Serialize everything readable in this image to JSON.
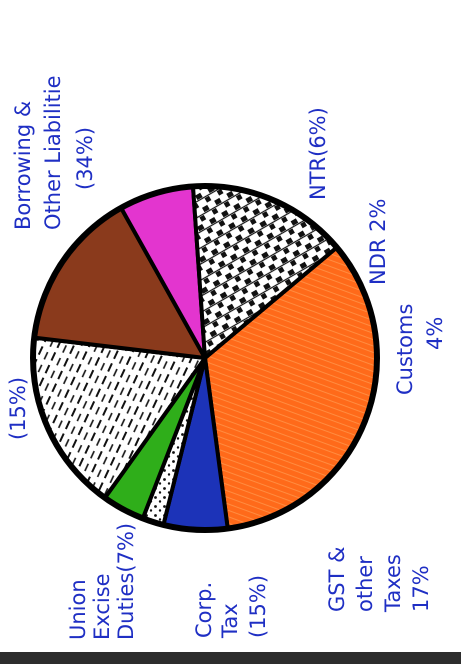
{
  "chart_data": {
    "type": "pie",
    "title": "",
    "slices": [
      {
        "label_lines": [
          "Borrowing &",
          "Other Liabilitie",
          "(34%)"
        ],
        "value": 34,
        "color": "#ff6a1a",
        "pattern": "hatch"
      },
      {
        "label_lines": [
          "NTR(6%)"
        ],
        "value": 6,
        "color": "#1c33b8",
        "pattern": "solid"
      },
      {
        "label_lines": [
          "NDR 2%"
        ],
        "value": 2,
        "color": "#ffffff",
        "pattern": "dots"
      },
      {
        "label_lines": [
          "Customs",
          "4%"
        ],
        "value": 4,
        "color": "#2fae1a",
        "pattern": "solid"
      },
      {
        "label_lines": [
          "GST &",
          "other",
          "Taxes",
          "17%"
        ],
        "value": 17,
        "color": "#ffffff",
        "pattern": "strokes"
      },
      {
        "label_lines": [
          "Corp.",
          "Tax",
          "(15%)"
        ],
        "value": 15,
        "color": "#8a3a1c",
        "pattern": "solid"
      },
      {
        "label_lines": [
          "Union",
          "Excise",
          "Duties(7%)"
        ],
        "value": 7,
        "color": "#e335cf",
        "pattern": "solid"
      },
      {
        "label_lines": [
          "(15%)"
        ],
        "value": 15,
        "color": "#ffffff",
        "pattern": "checker"
      }
    ]
  }
}
